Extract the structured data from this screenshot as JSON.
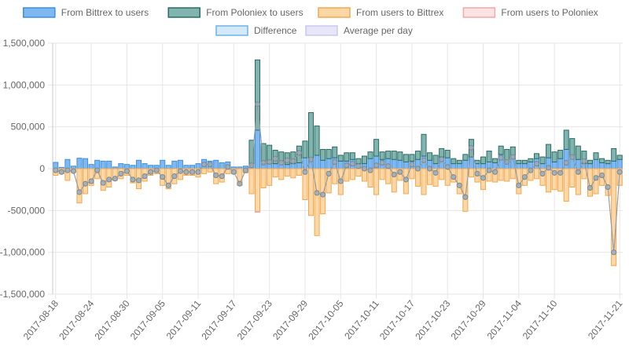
{
  "chart_data": {
    "type": "bar",
    "title": "",
    "xlabel": "",
    "ylabel": "",
    "ylim": [
      -1500000,
      1500000
    ],
    "y_ticks": [
      1500000,
      1000000,
      500000,
      0,
      -500000,
      -1000000,
      -1500000
    ],
    "y_tick_labels": [
      "1,500,000",
      "1,000,000",
      "500,000",
      "0",
      "-500,000",
      "-1,000,000",
      "-1,500,000"
    ],
    "x_tick_labels": [
      "2017-08-18",
      "2017-08-24",
      "2017-08-30",
      "2017-09-05",
      "2017-09-11",
      "2017-09-17",
      "2017-09-23",
      "2017-09-29",
      "2017-10-05",
      "2017-10-11",
      "2017-10-17",
      "2017-10-23",
      "2017-10-29",
      "2017-11-04",
      "2017-11-10",
      "2017-11-21"
    ],
    "x_tick_indices": [
      0,
      6,
      12,
      18,
      24,
      30,
      36,
      42,
      48,
      54,
      60,
      66,
      72,
      78,
      84,
      95
    ],
    "grid": true,
    "stacked": true,
    "legend_position": "top",
    "legend_rows": [
      [
        "From Bittrex to users",
        "From Poloniex to users",
        "From users to Bittrex",
        "From users to Poloniex"
      ],
      [
        "Difference",
        "Average per day"
      ]
    ],
    "colors": {
      "bittrex_out_fill": "#7fb8f0",
      "bittrex_out_stroke": "#3d8fe0",
      "poloniex_out_fill": "#7fb5ae",
      "poloniex_out_stroke": "#2e6b64",
      "bittrex_in_fill": "#fdd7a6",
      "bittrex_in_stroke": "#f0a850",
      "poloniex_in_fill": "#fde3e3",
      "poloniex_in_stroke": "#f0a8a8",
      "difference_fill": "#d4e9f8",
      "difference_stroke": "#6cb4e8",
      "average_fill": "#e6e6f8",
      "average_stroke": "#c8c8f0"
    },
    "x": [
      "2017-08-18",
      "2017-08-19",
      "2017-08-20",
      "2017-08-21",
      "2017-08-22",
      "2017-08-23",
      "2017-08-24",
      "2017-08-25",
      "2017-08-26",
      "2017-08-27",
      "2017-08-28",
      "2017-08-29",
      "2017-08-30",
      "2017-08-31",
      "2017-09-01",
      "2017-09-02",
      "2017-09-03",
      "2017-09-04",
      "2017-09-05",
      "2017-09-06",
      "2017-09-07",
      "2017-09-08",
      "2017-09-09",
      "2017-09-10",
      "2017-09-11",
      "2017-09-12",
      "2017-09-13",
      "2017-09-14",
      "2017-09-15",
      "2017-09-16",
      "2017-09-17",
      "2017-09-18",
      "2017-09-19",
      "2017-09-20",
      "2017-09-21",
      "2017-09-22",
      "2017-09-23",
      "2017-09-24",
      "2017-09-25",
      "2017-09-26",
      "2017-09-27",
      "2017-09-28",
      "2017-09-29",
      "2017-09-30",
      "2017-10-01",
      "2017-10-02",
      "2017-10-03",
      "2017-10-04",
      "2017-10-05",
      "2017-10-06",
      "2017-10-07",
      "2017-10-08",
      "2017-10-09",
      "2017-10-10",
      "2017-10-11",
      "2017-10-12",
      "2017-10-13",
      "2017-10-14",
      "2017-10-15",
      "2017-10-16",
      "2017-10-17",
      "2017-10-18",
      "2017-10-19",
      "2017-10-20",
      "2017-10-21",
      "2017-10-22",
      "2017-10-23",
      "2017-10-24",
      "2017-10-25",
      "2017-10-26",
      "2017-10-27",
      "2017-10-28",
      "2017-10-29",
      "2017-10-30",
      "2017-10-31",
      "2017-11-01",
      "2017-11-02",
      "2017-11-03",
      "2017-11-04",
      "2017-11-05",
      "2017-11-06",
      "2017-11-07",
      "2017-11-08",
      "2017-11-09",
      "2017-11-10",
      "2017-11-11",
      "2017-11-12",
      "2017-11-13",
      "2017-11-14",
      "2017-11-15",
      "2017-11-16",
      "2017-11-17",
      "2017-11-18",
      "2017-11-19",
      "2017-11-20",
      "2017-11-21"
    ],
    "series": [
      {
        "name": "From Bittrex to users",
        "stack": "out",
        "values": [
          75000,
          15000,
          110000,
          30000,
          125000,
          120000,
          50000,
          100000,
          90000,
          90000,
          20000,
          60000,
          50000,
          40000,
          100000,
          60000,
          40000,
          40000,
          100000,
          40000,
          90000,
          100000,
          40000,
          40000,
          60000,
          110000,
          90000,
          100000,
          70000,
          80000,
          20000,
          20000,
          30000,
          40000,
          460000,
          60000,
          60000,
          60000,
          80000,
          50000,
          60000,
          70000,
          130000,
          110000,
          160000,
          100000,
          120000,
          130000,
          90000,
          90000,
          110000,
          60000,
          60000,
          120000,
          150000,
          110000,
          120000,
          110000,
          100000,
          80000,
          90000,
          110000,
          150000,
          100000,
          60000,
          140000,
          130000,
          60000,
          60000,
          100000,
          140000,
          60000,
          60000,
          80000,
          70000,
          170000,
          80000,
          120000,
          60000,
          60000,
          80000,
          120000,
          60000,
          130000,
          80000,
          120000,
          230000,
          140000,
          110000,
          60000,
          60000,
          110000,
          70000,
          60000,
          90000,
          110000
        ]
      },
      {
        "name": "From Poloniex to users",
        "stack": "out",
        "values": [
          0,
          0,
          0,
          0,
          0,
          0,
          0,
          0,
          0,
          0,
          0,
          0,
          0,
          0,
          0,
          0,
          0,
          0,
          0,
          0,
          0,
          0,
          0,
          0,
          0,
          0,
          0,
          0,
          0,
          0,
          0,
          0,
          0,
          300000,
          840000,
          240000,
          220000,
          160000,
          120000,
          140000,
          140000,
          200000,
          200000,
          560000,
          350000,
          130000,
          110000,
          130000,
          70000,
          100000,
          80000,
          60000,
          90000,
          80000,
          200000,
          90000,
          90000,
          100000,
          100000,
          90000,
          80000,
          100000,
          260000,
          90000,
          100000,
          100000,
          90000,
          60000,
          40000,
          70000,
          210000,
          40000,
          80000,
          130000,
          50000,
          100000,
          150000,
          140000,
          40000,
          40000,
          40000,
          60000,
          80000,
          160000,
          120000,
          100000,
          230000,
          220000,
          160000,
          150000,
          40000,
          80000,
          50000,
          40000,
          150000,
          50000
        ]
      },
      {
        "name": "From users to Bittrex",
        "stack": "in",
        "values": [
          -80000,
          -60000,
          -140000,
          -40000,
          -410000,
          -300000,
          -200000,
          -120000,
          -260000,
          -220000,
          -140000,
          -120000,
          -80000,
          -170000,
          -240000,
          -150000,
          -80000,
          -60000,
          -200000,
          -240000,
          -180000,
          -130000,
          -80000,
          -80000,
          -100000,
          -60000,
          -40000,
          -180000,
          -160000,
          -60000,
          -60000,
          -200000,
          -50000,
          -300000,
          -510000,
          -230000,
          -200000,
          -100000,
          -130000,
          -90000,
          -110000,
          -80000,
          -370000,
          -560000,
          -800000,
          -540000,
          -290000,
          -180000,
          -310000,
          -150000,
          -130000,
          -90000,
          -150000,
          -220000,
          -310000,
          -130000,
          -180000,
          -280000,
          -140000,
          -300000,
          -120000,
          -210000,
          -310000,
          -190000,
          -210000,
          -130000,
          -200000,
          -160000,
          -300000,
          -510000,
          -100000,
          -160000,
          -250000,
          -150000,
          -160000,
          -140000,
          -150000,
          -120000,
          -300000,
          -200000,
          -140000,
          -120000,
          -200000,
          -280000,
          -250000,
          -270000,
          -390000,
          -220000,
          -310000,
          -120000,
          -330000,
          -300000,
          -200000,
          -320000,
          -1160000,
          -200000
        ]
      },
      {
        "name": "From users to Poloniex",
        "stack": "in",
        "values": [
          0,
          0,
          0,
          0,
          0,
          0,
          0,
          0,
          0,
          0,
          0,
          0,
          0,
          0,
          0,
          0,
          0,
          0,
          0,
          0,
          0,
          0,
          0,
          0,
          0,
          0,
          0,
          0,
          0,
          0,
          0,
          0,
          0,
          0,
          -10000,
          0,
          0,
          0,
          0,
          0,
          0,
          0,
          0,
          0,
          0,
          0,
          0,
          0,
          0,
          0,
          0,
          0,
          0,
          0,
          0,
          0,
          0,
          0,
          0,
          0,
          0,
          0,
          0,
          0,
          0,
          0,
          0,
          0,
          0,
          0,
          0,
          0,
          0,
          0,
          0,
          0,
          0,
          0,
          0,
          0,
          0,
          0,
          0,
          0,
          0,
          0,
          0,
          0,
          0,
          0,
          0,
          0,
          0,
          0,
          0,
          0
        ]
      },
      {
        "name": "Difference",
        "stack": "line",
        "values": [
          -20000,
          -40000,
          -20000,
          -30000,
          -280000,
          -180000,
          -150000,
          -20000,
          -170000,
          -130000,
          -120000,
          -60000,
          -30000,
          -130000,
          -140000,
          -90000,
          -40000,
          -20000,
          -100000,
          -200000,
          -90000,
          -30000,
          -40000,
          -40000,
          -40000,
          50000,
          50000,
          -80000,
          -90000,
          20000,
          -40000,
          -180000,
          -20000,
          40000,
          770000,
          70000,
          80000,
          120000,
          70000,
          100000,
          90000,
          190000,
          -40000,
          110000,
          -290000,
          -310000,
          -60000,
          80000,
          -150000,
          40000,
          60000,
          30000,
          0,
          -20000,
          40000,
          70000,
          30000,
          -70000,
          -40000,
          -130000,
          50000,
          0,
          100000,
          0,
          -50000,
          110000,
          20000,
          -100000,
          -200000,
          -340000,
          250000,
          -60000,
          -110000,
          -20000,
          -40000,
          130000,
          80000,
          140000,
          -200000,
          -100000,
          -20000,
          60000,
          -60000,
          10000,
          -50000,
          -50000,
          70000,
          140000,
          -40000,
          90000,
          -230000,
          -110000,
          -80000,
          -220000,
          -1000000,
          -40000
        ]
      },
      {
        "name": "Average per day",
        "stack": "line",
        "values": [
          -20000,
          -40000,
          -20000,
          -30000,
          -280000,
          -180000,
          -150000,
          -20000,
          -170000,
          -130000,
          -120000,
          -60000,
          -30000,
          -130000,
          -140000,
          -90000,
          -40000,
          -20000,
          -100000,
          -200000,
          -90000,
          -30000,
          -40000,
          -40000,
          -40000,
          50000,
          50000,
          -80000,
          -90000,
          20000,
          -40000,
          -180000,
          -20000,
          40000,
          770000,
          70000,
          80000,
          120000,
          70000,
          100000,
          90000,
          190000,
          -40000,
          110000,
          -290000,
          -310000,
          -60000,
          80000,
          -150000,
          40000,
          60000,
          30000,
          0,
          -20000,
          40000,
          70000,
          30000,
          -70000,
          -40000,
          -130000,
          50000,
          0,
          100000,
          0,
          -50000,
          110000,
          20000,
          -100000,
          -200000,
          -340000,
          250000,
          -60000,
          -110000,
          -20000,
          -40000,
          130000,
          80000,
          140000,
          -200000,
          -100000,
          -20000,
          60000,
          -60000,
          10000,
          -50000,
          -50000,
          70000,
          140000,
          -40000,
          90000,
          -230000,
          -110000,
          -80000,
          -220000,
          -1000000,
          -40000
        ]
      }
    ]
  }
}
